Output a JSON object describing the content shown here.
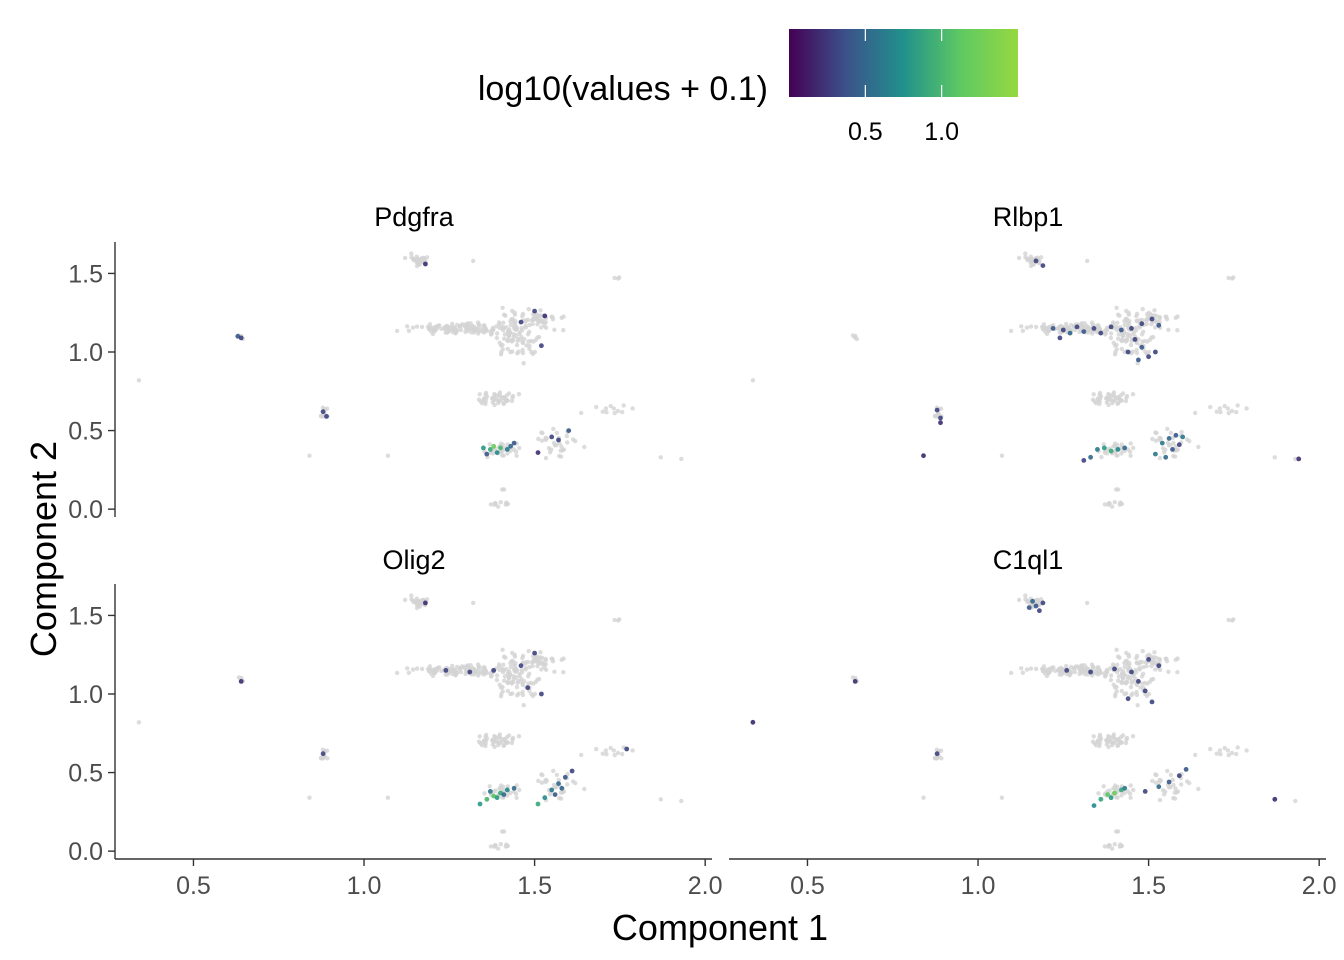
{
  "chart_data": {
    "type": "scatter",
    "xlabel": "Component 1",
    "ylabel": "Component 2",
    "xlim": [
      0.27,
      2.02
    ],
    "ylim": [
      -0.05,
      1.7
    ],
    "x_ticks": [
      "0.5",
      "1.0",
      "1.5",
      "2.0"
    ],
    "y_ticks": [
      "0.0",
      "0.5",
      "1.0",
      "1.5"
    ],
    "legend": {
      "title": "log10(values + 0.1)",
      "position": "top",
      "range": [
        0.0,
        1.5
      ],
      "ticks": [
        "0.5",
        "1.0"
      ],
      "colors": [
        "#440154",
        "#3b528b",
        "#21918c",
        "#5ec962",
        "#95d840"
      ]
    },
    "unexpressed_color": "#d3d3d3",
    "background_cells": [
      {
        "x": 1.16,
        "y": 1.58,
        "n": 30,
        "sx": 0.015,
        "sy": 0.02
      },
      {
        "x": 1.28,
        "y": 1.15,
        "n": 120,
        "sx": 0.07,
        "sy": 0.015
      },
      {
        "x": 1.45,
        "y": 1.1,
        "n": 90,
        "sx": 0.03,
        "sy": 0.07
      },
      {
        "x": 1.52,
        "y": 1.2,
        "n": 40,
        "sx": 0.03,
        "sy": 0.03
      },
      {
        "x": 1.38,
        "y": 0.7,
        "n": 45,
        "sx": 0.03,
        "sy": 0.02
      },
      {
        "x": 1.4,
        "y": 0.37,
        "n": 30,
        "sx": 0.03,
        "sy": 0.03
      },
      {
        "x": 1.57,
        "y": 0.42,
        "n": 30,
        "sx": 0.03,
        "sy": 0.05
      },
      {
        "x": 1.73,
        "y": 0.63,
        "n": 12,
        "sx": 0.04,
        "sy": 0.015
      },
      {
        "x": 0.88,
        "y": 0.62,
        "n": 10,
        "sx": 0.008,
        "sy": 0.02
      },
      {
        "x": 1.4,
        "y": 0.03,
        "n": 10,
        "sx": 0.02,
        "sy": 0.01
      },
      {
        "x": 0.64,
        "y": 1.1,
        "n": 4,
        "sx": 0.006,
        "sy": 0.008
      },
      {
        "x": 1.74,
        "y": 1.47,
        "n": 3,
        "sx": 0.006,
        "sy": 0.004
      },
      {
        "x": 1.41,
        "y": 0.12,
        "n": 2,
        "sx": 0.004,
        "sy": 0.01
      },
      {
        "x": 0.34,
        "y": 0.82,
        "n": 1,
        "sx": 0.0,
        "sy": 0.0
      },
      {
        "x": 1.18,
        "y": 1.58,
        "n": 1,
        "sx": 0.0,
        "sy": 0.0
      },
      {
        "x": 1.07,
        "y": 0.34,
        "n": 1,
        "sx": 0.0,
        "sy": 0.0
      },
      {
        "x": 0.84,
        "y": 0.34,
        "n": 1,
        "sx": 0.0,
        "sy": 0.0
      },
      {
        "x": 1.87,
        "y": 0.33,
        "n": 1,
        "sx": 0.0,
        "sy": 0.0
      },
      {
        "x": 1.93,
        "y": 0.32,
        "n": 1,
        "sx": 0.0,
        "sy": 0.0
      },
      {
        "x": 1.32,
        "y": 1.58,
        "n": 1,
        "sx": 0.0,
        "sy": 0.0
      }
    ],
    "panels": [
      {
        "title": "Pdgfra",
        "points": [
          {
            "x": 0.63,
            "y": 1.1,
            "v": 0.4
          },
          {
            "x": 0.64,
            "y": 1.09,
            "v": 0.3
          },
          {
            "x": 0.88,
            "y": 0.62,
            "v": 0.3
          },
          {
            "x": 0.89,
            "y": 0.59,
            "v": 0.3
          },
          {
            "x": 1.18,
            "y": 1.56,
            "v": 0.2
          },
          {
            "x": 1.5,
            "y": 1.26,
            "v": 0.3
          },
          {
            "x": 1.46,
            "y": 1.19,
            "v": 0.3
          },
          {
            "x": 1.52,
            "y": 1.04,
            "v": 0.3
          },
          {
            "x": 1.53,
            "y": 1.23,
            "v": 0.2
          },
          {
            "x": 1.35,
            "y": 0.39,
            "v": 0.8
          },
          {
            "x": 1.37,
            "y": 0.38,
            "v": 0.9
          },
          {
            "x": 1.38,
            "y": 0.4,
            "v": 1.2
          },
          {
            "x": 1.4,
            "y": 0.39,
            "v": 1.0
          },
          {
            "x": 1.42,
            "y": 0.38,
            "v": 0.6
          },
          {
            "x": 1.43,
            "y": 0.4,
            "v": 0.5
          },
          {
            "x": 1.44,
            "y": 0.42,
            "v": 0.4
          },
          {
            "x": 1.39,
            "y": 0.36,
            "v": 0.7
          },
          {
            "x": 1.36,
            "y": 0.35,
            "v": 0.4
          },
          {
            "x": 1.55,
            "y": 0.46,
            "v": 0.3
          },
          {
            "x": 1.6,
            "y": 0.5,
            "v": 0.4
          },
          {
            "x": 1.57,
            "y": 0.44,
            "v": 0.3
          },
          {
            "x": 1.51,
            "y": 0.36,
            "v": 0.2
          }
        ]
      },
      {
        "title": "Rlbp1",
        "points": [
          {
            "x": 1.22,
            "y": 1.15,
            "v": 0.4
          },
          {
            "x": 1.25,
            "y": 1.14,
            "v": 0.3
          },
          {
            "x": 1.27,
            "y": 1.12,
            "v": 0.5
          },
          {
            "x": 1.29,
            "y": 1.16,
            "v": 0.3
          },
          {
            "x": 1.31,
            "y": 1.13,
            "v": 0.4
          },
          {
            "x": 1.34,
            "y": 1.15,
            "v": 0.3
          },
          {
            "x": 1.36,
            "y": 1.12,
            "v": 0.3
          },
          {
            "x": 1.39,
            "y": 1.16,
            "v": 0.3
          },
          {
            "x": 1.42,
            "y": 1.14,
            "v": 0.4
          },
          {
            "x": 1.45,
            "y": 1.15,
            "v": 0.3
          },
          {
            "x": 1.48,
            "y": 1.18,
            "v": 0.3
          },
          {
            "x": 1.51,
            "y": 1.21,
            "v": 0.3
          },
          {
            "x": 1.53,
            "y": 1.17,
            "v": 0.4
          },
          {
            "x": 1.46,
            "y": 1.08,
            "v": 0.3
          },
          {
            "x": 1.48,
            "y": 1.03,
            "v": 0.4
          },
          {
            "x": 1.44,
            "y": 1.0,
            "v": 0.3
          },
          {
            "x": 1.5,
            "y": 0.97,
            "v": 0.3
          },
          {
            "x": 1.47,
            "y": 0.95,
            "v": 0.4
          },
          {
            "x": 1.52,
            "y": 1.0,
            "v": 0.3
          },
          {
            "x": 1.24,
            "y": 1.09,
            "v": 0.3
          },
          {
            "x": 1.17,
            "y": 1.58,
            "v": 0.3
          },
          {
            "x": 1.19,
            "y": 1.55,
            "v": 0.3
          },
          {
            "x": 0.88,
            "y": 0.63,
            "v": 0.3
          },
          {
            "x": 0.89,
            "y": 0.58,
            "v": 0.3
          },
          {
            "x": 0.84,
            "y": 0.34,
            "v": 0.2
          },
          {
            "x": 0.89,
            "y": 0.55,
            "v": 0.2
          },
          {
            "x": 1.35,
            "y": 0.38,
            "v": 0.6
          },
          {
            "x": 1.37,
            "y": 0.39,
            "v": 0.8
          },
          {
            "x": 1.39,
            "y": 0.37,
            "v": 0.9
          },
          {
            "x": 1.41,
            "y": 0.38,
            "v": 0.7
          },
          {
            "x": 1.43,
            "y": 0.39,
            "v": 0.5
          },
          {
            "x": 1.33,
            "y": 0.33,
            "v": 0.5
          },
          {
            "x": 1.31,
            "y": 0.31,
            "v": 0.3
          },
          {
            "x": 1.54,
            "y": 0.42,
            "v": 0.6
          },
          {
            "x": 1.56,
            "y": 0.45,
            "v": 0.5
          },
          {
            "x": 1.58,
            "y": 0.47,
            "v": 0.4
          },
          {
            "x": 1.6,
            "y": 0.46,
            "v": 0.6
          },
          {
            "x": 1.57,
            "y": 0.38,
            "v": 0.4
          },
          {
            "x": 1.55,
            "y": 0.33,
            "v": 0.5
          },
          {
            "x": 1.52,
            "y": 0.35,
            "v": 0.6
          },
          {
            "x": 1.59,
            "y": 0.41,
            "v": 0.3
          },
          {
            "x": 1.94,
            "y": 0.32,
            "v": 0.2
          }
        ]
      },
      {
        "title": "Olig2",
        "points": [
          {
            "x": 0.88,
            "y": 0.62,
            "v": 0.3
          },
          {
            "x": 0.64,
            "y": 1.08,
            "v": 0.2
          },
          {
            "x": 1.18,
            "y": 1.58,
            "v": 0.2
          },
          {
            "x": 1.24,
            "y": 1.15,
            "v": 0.3
          },
          {
            "x": 1.31,
            "y": 1.14,
            "v": 0.3
          },
          {
            "x": 1.38,
            "y": 1.15,
            "v": 0.3
          },
          {
            "x": 1.46,
            "y": 1.18,
            "v": 0.3
          },
          {
            "x": 1.5,
            "y": 1.26,
            "v": 0.3
          },
          {
            "x": 1.48,
            "y": 1.04,
            "v": 0.3
          },
          {
            "x": 1.52,
            "y": 1.0,
            "v": 0.3
          },
          {
            "x": 1.34,
            "y": 0.3,
            "v": 0.8
          },
          {
            "x": 1.36,
            "y": 0.33,
            "v": 1.0
          },
          {
            "x": 1.38,
            "y": 0.35,
            "v": 1.1
          },
          {
            "x": 1.4,
            "y": 0.37,
            "v": 0.9
          },
          {
            "x": 1.42,
            "y": 0.39,
            "v": 0.7
          },
          {
            "x": 1.44,
            "y": 0.4,
            "v": 0.5
          },
          {
            "x": 1.37,
            "y": 0.38,
            "v": 0.6
          },
          {
            "x": 1.39,
            "y": 0.34,
            "v": 0.8
          },
          {
            "x": 1.41,
            "y": 0.36,
            "v": 0.5
          },
          {
            "x": 1.51,
            "y": 0.3,
            "v": 0.9
          },
          {
            "x": 1.53,
            "y": 0.34,
            "v": 0.7
          },
          {
            "x": 1.55,
            "y": 0.39,
            "v": 0.6
          },
          {
            "x": 1.57,
            "y": 0.43,
            "v": 0.5
          },
          {
            "x": 1.59,
            "y": 0.47,
            "v": 0.4
          },
          {
            "x": 1.61,
            "y": 0.51,
            "v": 0.3
          },
          {
            "x": 1.56,
            "y": 0.36,
            "v": 0.4
          },
          {
            "x": 1.58,
            "y": 0.4,
            "v": 0.5
          },
          {
            "x": 1.77,
            "y": 0.65,
            "v": 0.3
          }
        ]
      },
      {
        "title": "C1ql1",
        "points": [
          {
            "x": 1.16,
            "y": 1.59,
            "v": 0.5
          },
          {
            "x": 1.17,
            "y": 1.56,
            "v": 0.4
          },
          {
            "x": 1.19,
            "y": 1.58,
            "v": 0.3
          },
          {
            "x": 1.15,
            "y": 1.55,
            "v": 0.4
          },
          {
            "x": 1.18,
            "y": 1.53,
            "v": 0.3
          },
          {
            "x": 1.26,
            "y": 1.15,
            "v": 0.3
          },
          {
            "x": 1.33,
            "y": 1.14,
            "v": 0.3
          },
          {
            "x": 1.4,
            "y": 1.16,
            "v": 0.3
          },
          {
            "x": 1.45,
            "y": 1.14,
            "v": 0.3
          },
          {
            "x": 1.5,
            "y": 1.22,
            "v": 0.3
          },
          {
            "x": 1.53,
            "y": 1.18,
            "v": 0.3
          },
          {
            "x": 1.47,
            "y": 1.08,
            "v": 0.3
          },
          {
            "x": 1.49,
            "y": 1.02,
            "v": 0.3
          },
          {
            "x": 1.44,
            "y": 0.97,
            "v": 0.3
          },
          {
            "x": 1.51,
            "y": 0.95,
            "v": 0.3
          },
          {
            "x": 0.88,
            "y": 0.62,
            "v": 0.3
          },
          {
            "x": 0.34,
            "y": 0.82,
            "v": 0.2
          },
          {
            "x": 0.64,
            "y": 1.08,
            "v": 0.2
          },
          {
            "x": 1.34,
            "y": 0.29,
            "v": 0.7
          },
          {
            "x": 1.36,
            "y": 0.33,
            "v": 0.9
          },
          {
            "x": 1.38,
            "y": 0.36,
            "v": 1.1
          },
          {
            "x": 1.4,
            "y": 0.37,
            "v": 1.2
          },
          {
            "x": 1.42,
            "y": 0.39,
            "v": 0.9
          },
          {
            "x": 1.43,
            "y": 0.4,
            "v": 0.6
          },
          {
            "x": 1.39,
            "y": 0.34,
            "v": 0.8
          },
          {
            "x": 1.53,
            "y": 0.41,
            "v": 0.5
          },
          {
            "x": 1.56,
            "y": 0.44,
            "v": 0.4
          },
          {
            "x": 1.59,
            "y": 0.48,
            "v": 0.3
          },
          {
            "x": 1.61,
            "y": 0.52,
            "v": 0.4
          },
          {
            "x": 1.49,
            "y": 0.38,
            "v": 0.3
          },
          {
            "x": 1.87,
            "y": 0.33,
            "v": 0.2
          }
        ]
      }
    ]
  }
}
